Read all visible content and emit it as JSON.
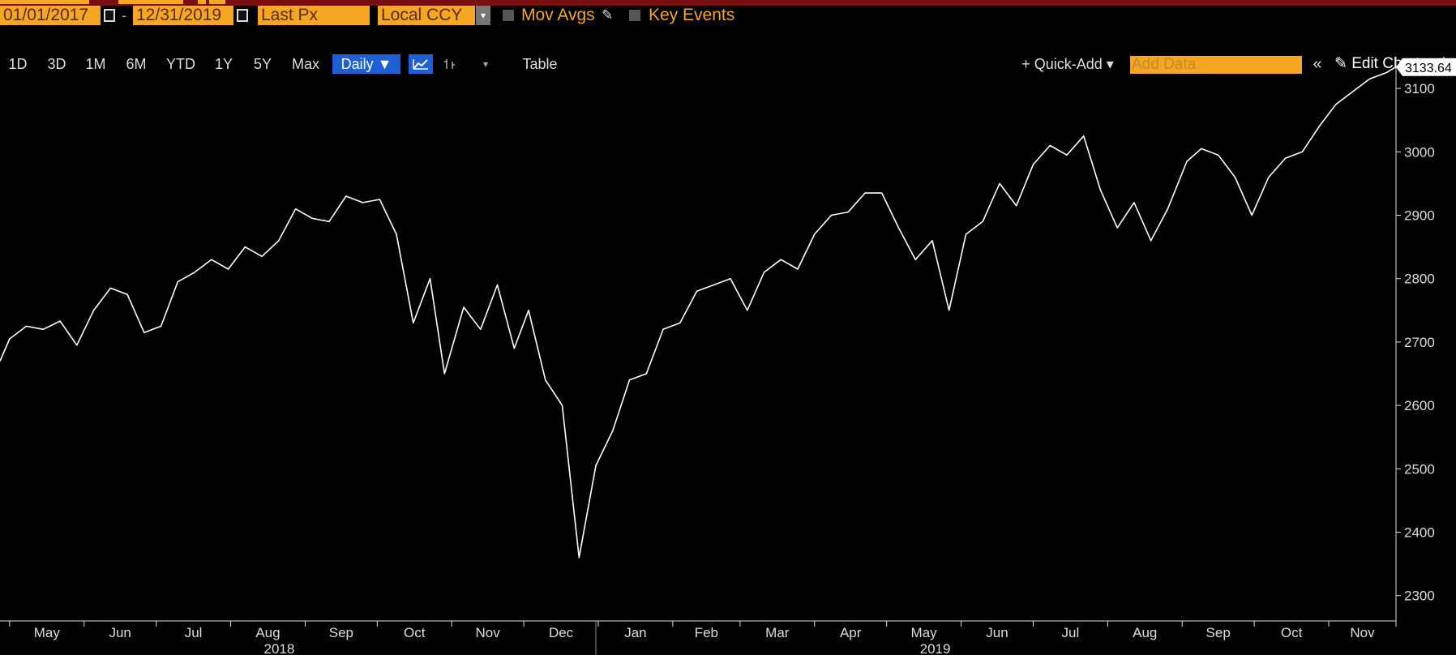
{
  "toolbar": {
    "start_date": "01/01/2017",
    "end_date": "12/31/2019",
    "date_sep": "-",
    "field": "Last Px",
    "currency": "Local CCY",
    "mov_avgs": "Mov Avgs",
    "key_events": "Key Events"
  },
  "periods": [
    "1D",
    "3D",
    "1M",
    "6M",
    "YTD",
    "1Y",
    "5Y",
    "Max"
  ],
  "frequency": "Daily ▼",
  "table_label": "Table",
  "quick_add": "+ Quick-Add ▾",
  "add_data_placeholder": "Add Data",
  "collapse_icon": "«",
  "edit_chart": "Edit Chart",
  "colors": {
    "accent": "#f5a623",
    "active": "#1f5fd6",
    "line": "#ffffff",
    "bg": "#000000"
  },
  "chart_data": {
    "type": "line",
    "last_value_label": "3133.64",
    "ylim": [
      2260,
      3150
    ],
    "y_ticks": [
      2300,
      2400,
      2500,
      2600,
      2700,
      2800,
      2900,
      3000,
      3100
    ],
    "x_month_labels": [
      "May",
      "Jun",
      "Jul",
      "Aug",
      "Sep",
      "Oct",
      "Nov",
      "Dec",
      "Jan",
      "Feb",
      "Mar",
      "Apr",
      "May",
      "Jun",
      "Jul",
      "Aug",
      "Sep",
      "Oct",
      "Nov"
    ],
    "x_year_labels": [
      "2018",
      "2019"
    ],
    "series": [
      {
        "x": [
          "2018-04-27",
          "2018-05-01",
          "2018-05-08",
          "2018-05-15",
          "2018-05-22",
          "2018-05-29",
          "2018-06-05",
          "2018-06-12",
          "2018-06-19",
          "2018-06-26",
          "2018-07-03",
          "2018-07-10",
          "2018-07-17",
          "2018-07-24",
          "2018-07-31",
          "2018-08-07",
          "2018-08-14",
          "2018-08-21",
          "2018-08-28",
          "2018-09-04",
          "2018-09-11",
          "2018-09-18",
          "2018-09-25",
          "2018-10-02",
          "2018-10-09",
          "2018-10-16",
          "2018-10-23",
          "2018-10-29",
          "2018-11-06",
          "2018-11-13",
          "2018-11-20",
          "2018-11-27",
          "2018-12-03",
          "2018-12-10",
          "2018-12-17",
          "2018-12-24",
          "2018-12-31",
          "2019-01-07",
          "2019-01-14",
          "2019-01-21",
          "2019-01-28",
          "2019-02-04",
          "2019-02-11",
          "2019-02-18",
          "2019-02-25",
          "2019-03-04",
          "2019-03-11",
          "2019-03-18",
          "2019-03-25",
          "2019-04-01",
          "2019-04-08",
          "2019-04-15",
          "2019-04-22",
          "2019-04-29",
          "2019-05-06",
          "2019-05-13",
          "2019-05-20",
          "2019-05-27",
          "2019-06-03",
          "2019-06-10",
          "2019-06-17",
          "2019-06-24",
          "2019-07-01",
          "2019-07-08",
          "2019-07-15",
          "2019-07-22",
          "2019-07-29",
          "2019-08-05",
          "2019-08-12",
          "2019-08-19",
          "2019-08-26",
          "2019-09-03",
          "2019-09-09",
          "2019-09-16",
          "2019-09-23",
          "2019-09-30",
          "2019-10-07",
          "2019-10-14",
          "2019-10-21",
          "2019-10-28",
          "2019-11-04",
          "2019-11-11",
          "2019-11-18",
          "2019-11-25",
          "2019-11-29"
        ],
        "y": [
          2670,
          2705,
          2725,
          2720,
          2733,
          2695,
          2750,
          2785,
          2775,
          2715,
          2725,
          2795,
          2810,
          2830,
          2815,
          2850,
          2835,
          2860,
          2910,
          2895,
          2890,
          2930,
          2920,
          2925,
          2870,
          2730,
          2800,
          2650,
          2755,
          2720,
          2790,
          2690,
          2750,
          2640,
          2600,
          2360,
          2505,
          2560,
          2640,
          2650,
          2720,
          2730,
          2780,
          2790,
          2800,
          2750,
          2810,
          2830,
          2815,
          2870,
          2900,
          2905,
          2935,
          2935,
          2880,
          2830,
          2860,
          2750,
          2870,
          2890,
          2950,
          2915,
          2980,
          3010,
          2995,
          3025,
          2940,
          2880,
          2920,
          2860,
          2910,
          2985,
          3005,
          2995,
          2960,
          2900,
          2960,
          2990,
          3000,
          3040,
          3075,
          3095,
          3115,
          3125,
          3134
        ]
      }
    ]
  }
}
